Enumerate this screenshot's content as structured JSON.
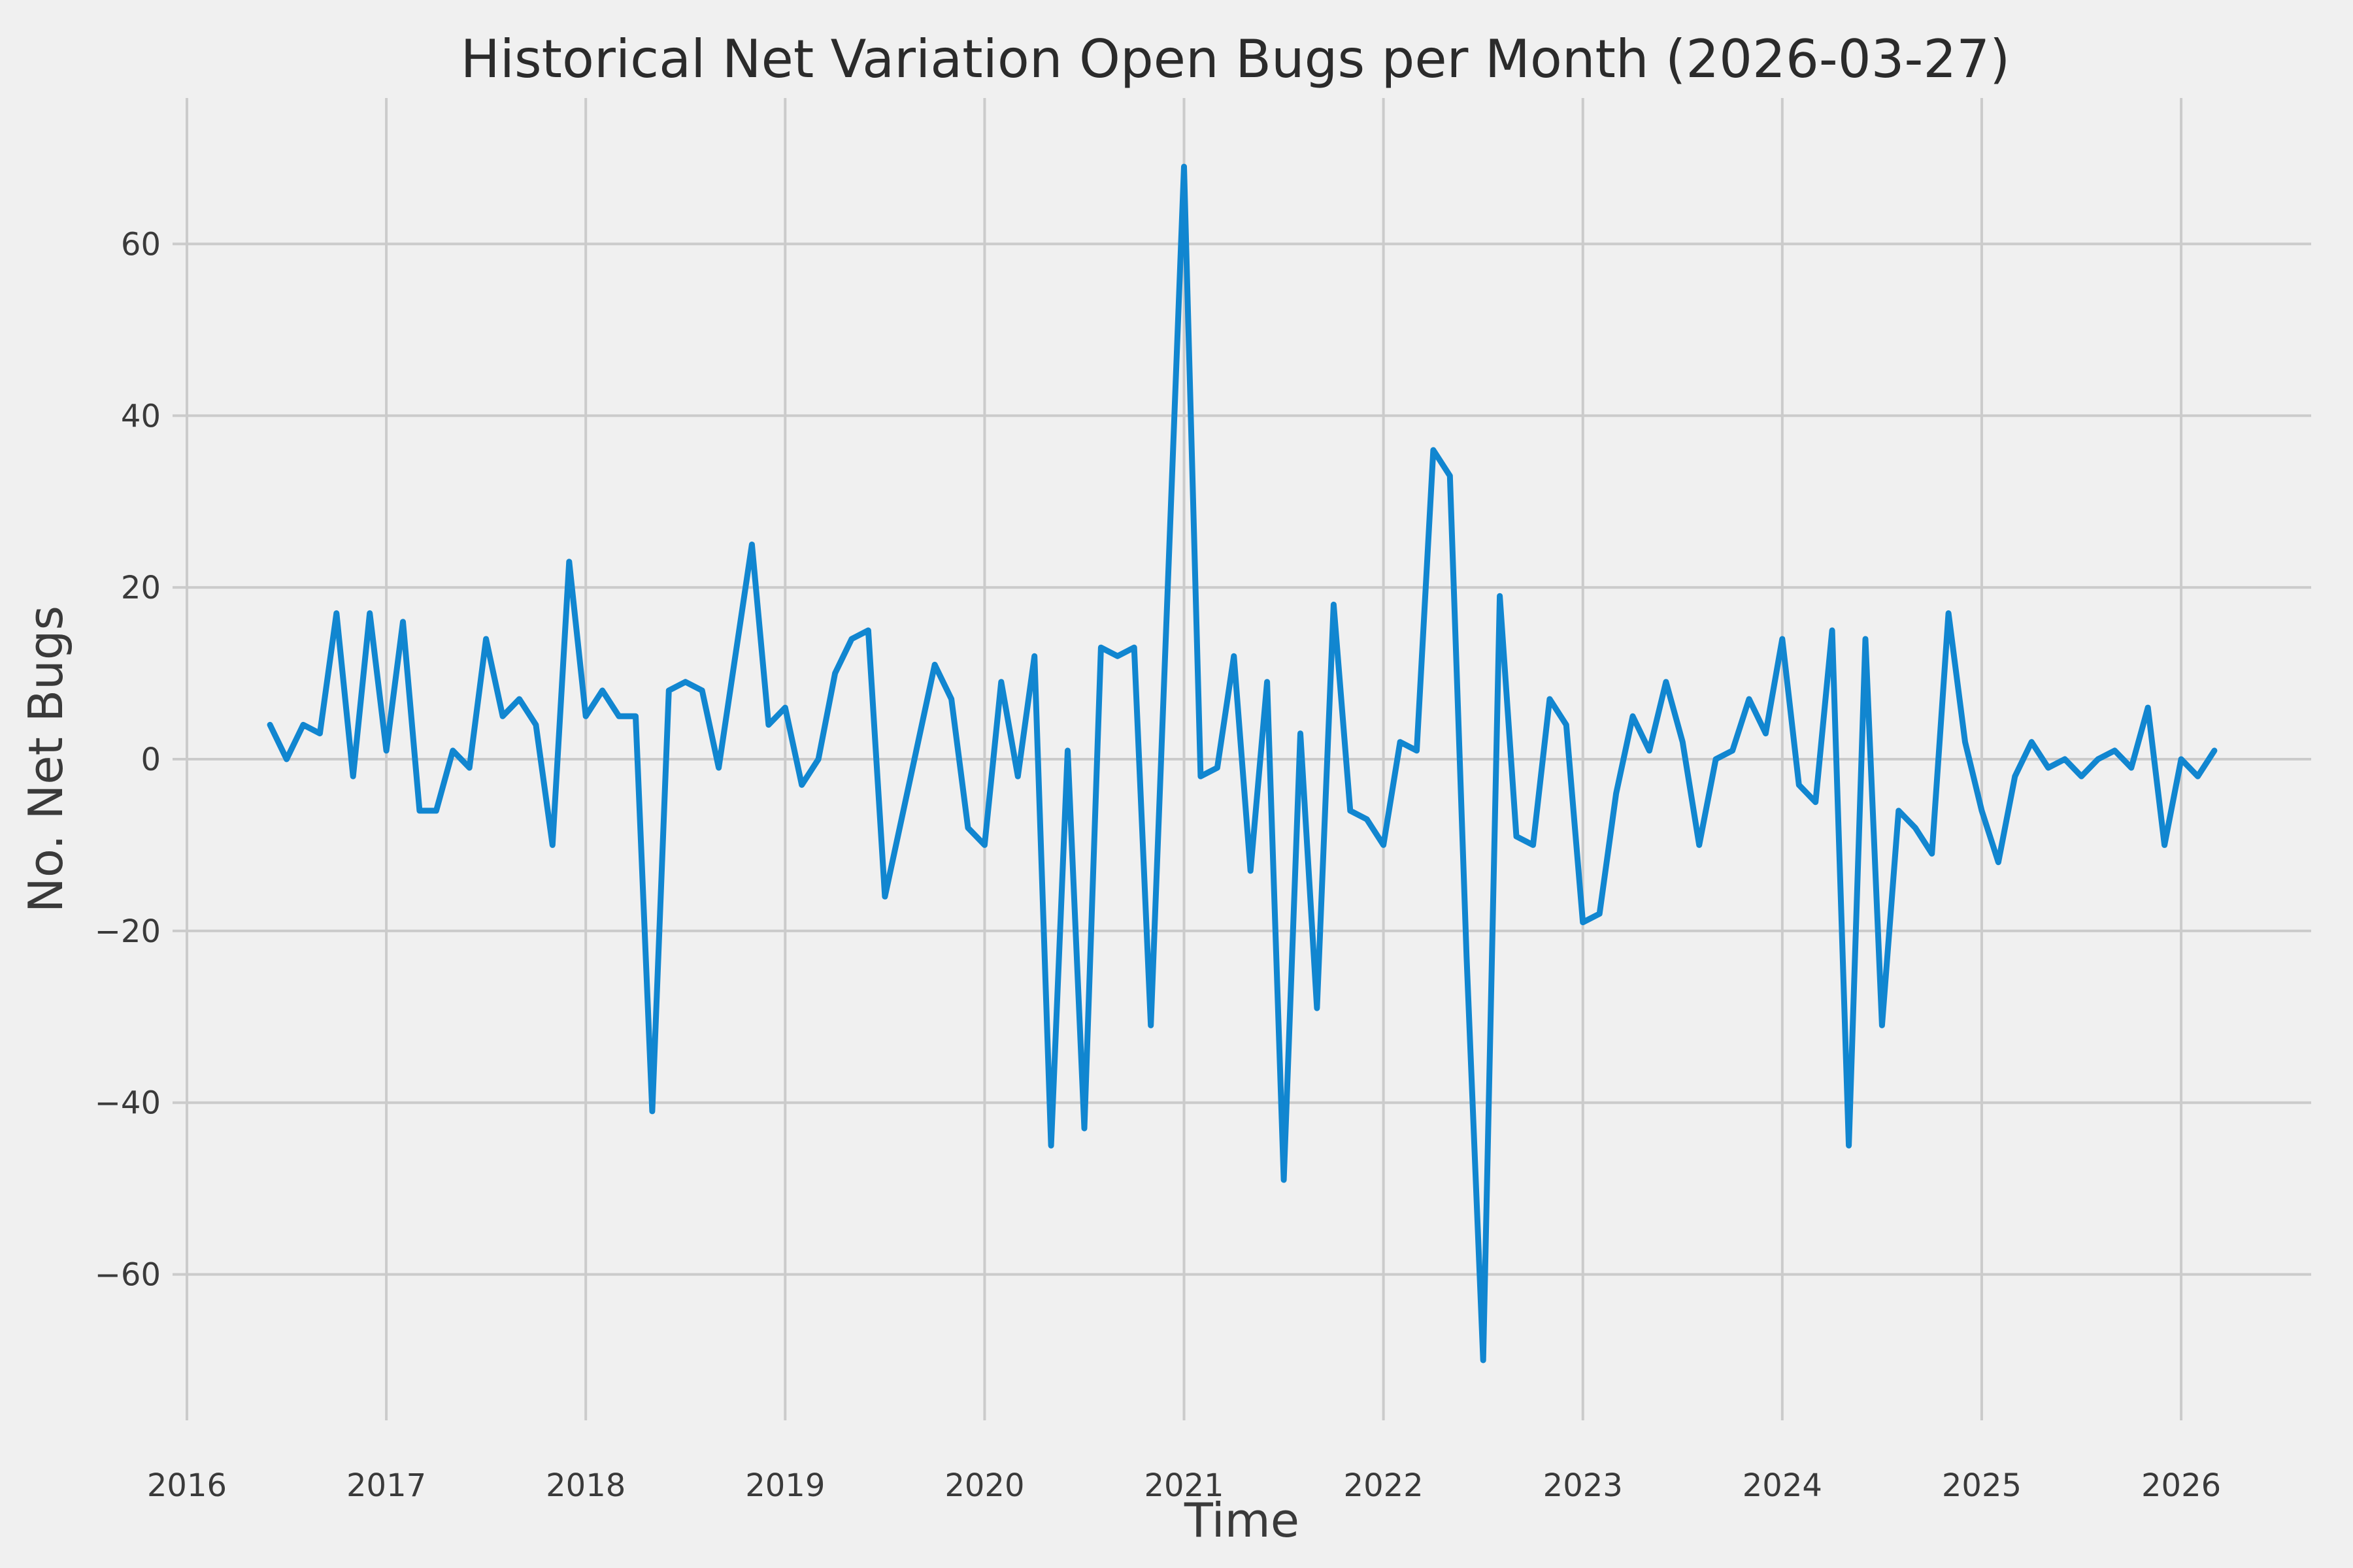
{
  "title": "Historical Net Variation Open Bugs per Month (2026-03-27)",
  "chart_data": {
    "type": "line",
    "title": "Historical Net Variation Open Bugs per Month (2026-03-27)",
    "xlabel": "Time",
    "ylabel": "No. Net Bugs",
    "legend_position": "none",
    "grid": true,
    "background_color": "#f0f0f0",
    "grid_color": "#cbcbcb",
    "line_color": "#1186d0",
    "text_color": "#3a3a3a",
    "x_tick_labels": [
      "2016",
      "2017",
      "2018",
      "2019",
      "2020",
      "2021",
      "2022",
      "2023",
      "2024",
      "2025",
      "2026"
    ],
    "x_tick_years": [
      2016,
      2017,
      2018,
      2019,
      2020,
      2021,
      2022,
      2023,
      2024,
      2025,
      2026
    ],
    "y_tick_labels": [
      "−60",
      "−40",
      "−20",
      "0",
      "20",
      "40",
      "60"
    ],
    "y_tick_values": [
      -60,
      -40,
      -20,
      0,
      20,
      40,
      60
    ],
    "xlim": [
      2015.928,
      2026.652
    ],
    "ylim": [
      -77,
      77
    ],
    "series": [
      {
        "name": "net-open-bugs-variation",
        "dates": [
          "2016-06",
          "2016-07",
          "2016-08",
          "2016-09",
          "2016-10",
          "2016-11",
          "2016-12",
          "2017-01",
          "2017-02",
          "2017-03",
          "2017-04",
          "2017-05",
          "2017-06",
          "2017-07",
          "2017-08",
          "2017-09",
          "2017-10",
          "2017-11",
          "2017-12",
          "2018-01",
          "2018-02",
          "2018-03",
          "2018-04",
          "2018-05",
          "2018-06",
          "2018-07",
          "2018-08",
          "2018-09",
          "2018-10",
          "2018-11",
          "2018-12",
          "2019-01",
          "2019-02",
          "2019-03",
          "2019-04",
          "2019-05",
          "2019-06",
          "2019-07",
          "2019-08",
          "2019-09",
          "2019-10",
          "2019-11",
          "2019-12",
          "2020-01",
          "2020-02",
          "2020-03",
          "2020-04",
          "2020-05",
          "2020-06",
          "2020-07",
          "2020-08",
          "2020-09",
          "2020-10",
          "2020-11",
          "2020-12",
          "2021-01",
          "2021-02",
          "2021-03",
          "2021-04",
          "2021-05",
          "2021-06",
          "2021-07",
          "2021-08",
          "2021-09",
          "2021-10",
          "2021-11",
          "2021-12",
          "2022-01",
          "2022-02",
          "2022-03",
          "2022-04",
          "2022-05",
          "2022-06",
          "2022-07",
          "2022-08",
          "2022-09",
          "2022-10",
          "2022-11",
          "2022-12",
          "2023-01",
          "2023-02",
          "2023-03",
          "2023-04",
          "2023-05",
          "2023-06",
          "2023-07",
          "2023-08",
          "2023-09",
          "2023-10",
          "2023-11",
          "2023-12",
          "2024-01",
          "2024-02",
          "2024-03",
          "2024-04",
          "2024-05",
          "2024-06",
          "2024-07",
          "2024-08",
          "2024-09",
          "2024-10",
          "2024-11",
          "2024-12",
          "2025-01",
          "2025-02",
          "2025-03",
          "2025-04",
          "2025-05",
          "2025-06",
          "2025-07",
          "2025-08",
          "2025-09",
          "2025-10",
          "2025-11",
          "2025-12",
          "2026-01",
          "2026-02",
          "2026-03"
        ],
        "values": [
          4,
          0,
          4,
          3,
          17,
          -2,
          17,
          1,
          16,
          -6,
          -6,
          1,
          -1,
          14,
          5,
          7,
          4,
          -10,
          23,
          5,
          8,
          5,
          5,
          -41,
          8,
          9,
          8,
          -1,
          12,
          25,
          4,
          6,
          -3,
          0,
          10,
          14,
          15,
          -16,
          -7,
          2,
          11,
          7,
          -8,
          -10,
          9,
          -2,
          12,
          -45,
          1,
          -43,
          13,
          12,
          13,
          -31,
          19,
          69,
          -2,
          -1,
          12,
          -13,
          9,
          -49,
          3,
          -29,
          18,
          -6,
          -7,
          -10,
          2,
          1,
          36,
          33,
          -23,
          -70,
          19,
          -9,
          -10,
          7,
          4,
          -19,
          -18,
          -4,
          5,
          1,
          9,
          2,
          -10,
          0,
          1,
          7,
          3,
          14,
          -3,
          -5,
          15,
          -45,
          14,
          -31,
          -6,
          -8,
          -11,
          17,
          2,
          -6,
          -12,
          -2,
          2,
          -1,
          0,
          -2,
          0,
          1,
          -1,
          6,
          -10,
          0,
          -2,
          1
        ]
      }
    ]
  }
}
